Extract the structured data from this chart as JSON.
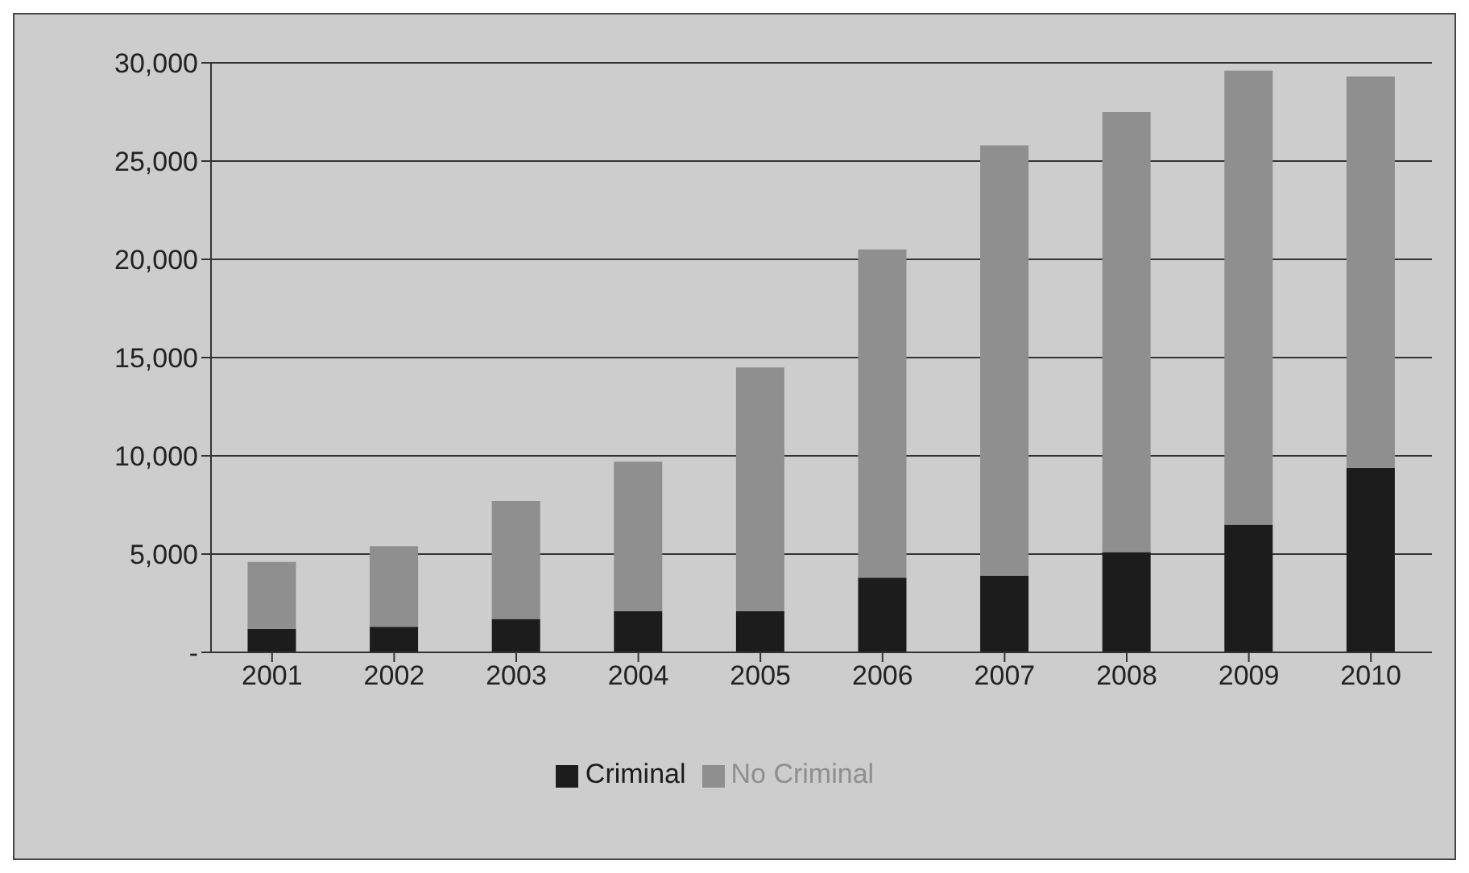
{
  "chart_data": {
    "type": "bar",
    "stacked": true,
    "categories": [
      "2001",
      "2002",
      "2003",
      "2004",
      "2005",
      "2006",
      "2007",
      "2008",
      "2009",
      "2010"
    ],
    "series": [
      {
        "name": "Criminal",
        "color": "#1c1c1c",
        "values": [
          1200,
          1300,
          1700,
          2100,
          2100,
          3800,
          3900,
          5100,
          6500,
          9400
        ]
      },
      {
        "name": "No Criminal",
        "color": "#8f8f8f",
        "values": [
          3400,
          4100,
          6000,
          7600,
          12400,
          16700,
          21900,
          22400,
          23100,
          19900
        ]
      }
    ],
    "ylim": [
      0,
      30000
    ],
    "yticks": [
      {
        "value": 0,
        "label": "-"
      },
      {
        "value": 5000,
        "label": "5,000"
      },
      {
        "value": 10000,
        "label": "10,000"
      },
      {
        "value": 15000,
        "label": "15,000"
      },
      {
        "value": 20000,
        "label": "20,000"
      },
      {
        "value": 25000,
        "label": "25,000"
      },
      {
        "value": 30000,
        "label": "30,000"
      }
    ],
    "grid": "y",
    "legend": "bottom"
  }
}
